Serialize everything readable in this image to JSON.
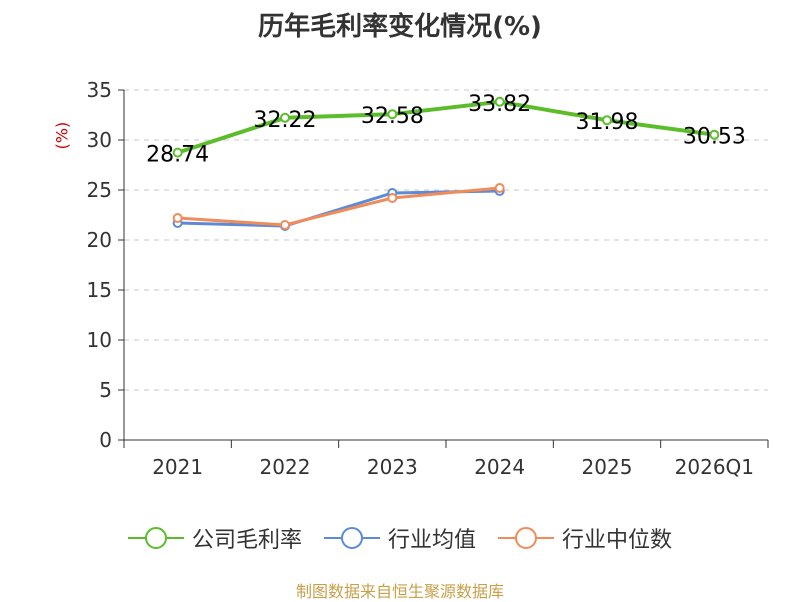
{
  "chart_data": {
    "type": "line",
    "title": "历年毛利率变化情况(%)",
    "ylabel": "(%)",
    "categories": [
      "2021",
      "2022",
      "2023",
      "2024",
      "2025",
      "2026Q1"
    ],
    "ylim": [
      0,
      35
    ],
    "yticks": [
      0,
      5,
      10,
      15,
      20,
      25,
      30,
      35
    ],
    "grid": true,
    "legend_position": "bottom",
    "series": [
      {
        "name": "公司毛利率",
        "color": "#5cbd2a",
        "values": [
          28.74,
          32.22,
          32.58,
          33.82,
          31.98,
          30.53
        ],
        "labels": [
          "28.74",
          "32.22",
          "32.58",
          "33.82",
          "31.98",
          "30.53"
        ]
      },
      {
        "name": "行业均值",
        "color": "#5b8bd6",
        "values": [
          21.7,
          21.4,
          24.7,
          24.9,
          null,
          null
        ]
      },
      {
        "name": "行业中位数",
        "color": "#f08c5a",
        "values": [
          22.2,
          21.5,
          24.2,
          25.2,
          null,
          null
        ]
      }
    ]
  },
  "footer": {
    "source": "制图数据来自恒生聚源数据库"
  }
}
